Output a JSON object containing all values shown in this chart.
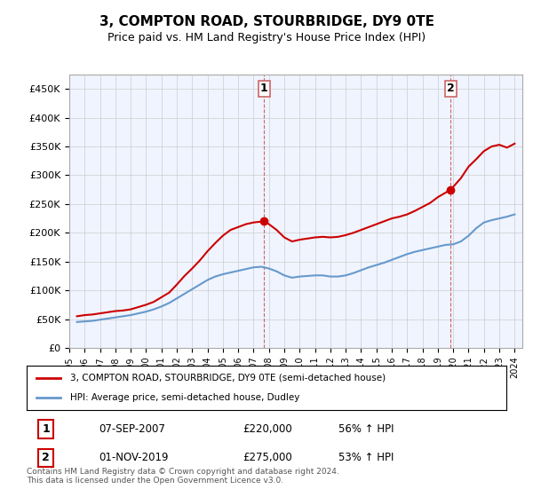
{
  "title": "3, COMPTON ROAD, STOURBRIDGE, DY9 0TE",
  "subtitle": "Price paid vs. HM Land Registry's House Price Index (HPI)",
  "red_label": "3, COMPTON ROAD, STOURBRIDGE, DY9 0TE (semi-detached house)",
  "blue_label": "HPI: Average price, semi-detached house, Dudley",
  "footnote": "Contains HM Land Registry data © Crown copyright and database right 2024.\nThis data is licensed under the Open Government Licence v3.0.",
  "point1_label": "1",
  "point1_date": "07-SEP-2007",
  "point1_price": "£220,000",
  "point1_hpi": "56% ↑ HPI",
  "point1_year": 2007.69,
  "point1_value": 220000,
  "point2_label": "2",
  "point2_date": "01-NOV-2019",
  "point2_price": "£275,000",
  "point2_hpi": "53% ↑ HPI",
  "point2_year": 2019.84,
  "point2_value": 275000,
  "ylim": [
    0,
    475000
  ],
  "yticks": [
    0,
    50000,
    100000,
    150000,
    200000,
    250000,
    300000,
    350000,
    400000,
    450000
  ],
  "ytick_labels": [
    "£0",
    "£50K",
    "£100K",
    "£150K",
    "£200K",
    "£250K",
    "£300K",
    "£350K",
    "£400K",
    "£450K"
  ],
  "red_color": "#cc0000",
  "blue_color": "#6699cc",
  "dashed_color": "#cc6666",
  "grid_color": "#cccccc",
  "background_color": "#ffffff",
  "plot_bg_color": "#f0f4ff",
  "red_data_x": [
    1995.5,
    1996.0,
    1996.5,
    1997.0,
    1997.5,
    1998.0,
    1998.5,
    1999.0,
    1999.5,
    2000.0,
    2000.5,
    2001.0,
    2001.5,
    2002.0,
    2002.5,
    2003.0,
    2003.5,
    2004.0,
    2004.5,
    2005.0,
    2005.5,
    2006.0,
    2006.5,
    2007.0,
    2007.69,
    2008.0,
    2008.5,
    2009.0,
    2009.5,
    2010.0,
    2010.5,
    2011.0,
    2011.5,
    2012.0,
    2012.5,
    2013.0,
    2013.5,
    2014.0,
    2014.5,
    2015.0,
    2015.5,
    2016.0,
    2016.5,
    2017.0,
    2017.5,
    2018.0,
    2018.5,
    2019.0,
    2019.84,
    2020.5,
    2021.0,
    2021.5,
    2022.0,
    2022.5,
    2023.0,
    2023.5,
    2024.0
  ],
  "red_data_y": [
    55000,
    57000,
    58000,
    60000,
    62000,
    64000,
    65000,
    67000,
    71000,
    75000,
    80000,
    88000,
    96000,
    110000,
    125000,
    138000,
    152000,
    168000,
    182000,
    195000,
    205000,
    210000,
    215000,
    218000,
    220000,
    215000,
    205000,
    192000,
    185000,
    188000,
    190000,
    192000,
    193000,
    192000,
    193000,
    196000,
    200000,
    205000,
    210000,
    215000,
    220000,
    225000,
    228000,
    232000,
    238000,
    245000,
    252000,
    262000,
    275000,
    295000,
    315000,
    328000,
    342000,
    350000,
    353000,
    348000,
    355000
  ],
  "blue_data_x": [
    1995.5,
    1996.0,
    1996.5,
    1997.0,
    1997.5,
    1998.0,
    1998.5,
    1999.0,
    1999.5,
    2000.0,
    2000.5,
    2001.0,
    2001.5,
    2002.0,
    2002.5,
    2003.0,
    2003.5,
    2004.0,
    2004.5,
    2005.0,
    2005.5,
    2006.0,
    2006.5,
    2007.0,
    2007.5,
    2008.0,
    2008.5,
    2009.0,
    2009.5,
    2010.0,
    2010.5,
    2011.0,
    2011.5,
    2012.0,
    2012.5,
    2013.0,
    2013.5,
    2014.0,
    2014.5,
    2015.0,
    2015.5,
    2016.0,
    2016.5,
    2017.0,
    2017.5,
    2018.0,
    2018.5,
    2019.0,
    2019.5,
    2020.0,
    2020.5,
    2021.0,
    2021.5,
    2022.0,
    2022.5,
    2023.0,
    2023.5,
    2024.0
  ],
  "blue_data_y": [
    45000,
    46000,
    47000,
    49000,
    51000,
    53000,
    55000,
    57000,
    60000,
    63000,
    67000,
    72000,
    78000,
    86000,
    94000,
    102000,
    110000,
    118000,
    124000,
    128000,
    131000,
    134000,
    137000,
    140000,
    141000,
    138000,
    133000,
    126000,
    122000,
    124000,
    125000,
    126000,
    126000,
    124000,
    124000,
    126000,
    130000,
    135000,
    140000,
    144000,
    148000,
    153000,
    158000,
    163000,
    167000,
    170000,
    173000,
    176000,
    179000,
    180000,
    185000,
    195000,
    208000,
    218000,
    222000,
    225000,
    228000,
    232000
  ]
}
